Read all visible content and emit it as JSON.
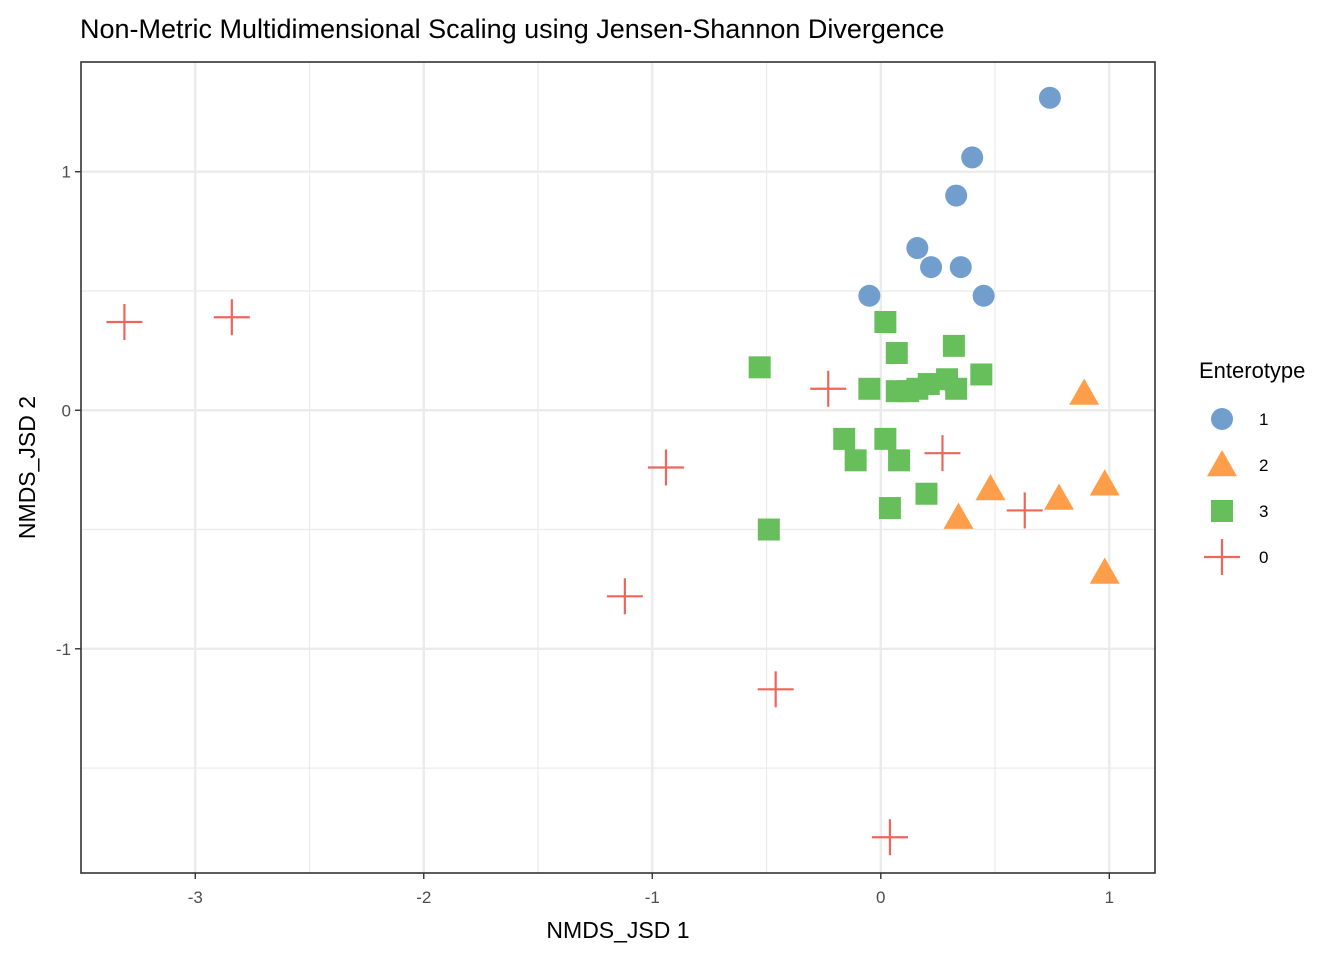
{
  "chart_data": {
    "type": "scatter",
    "title": "Non-Metric Multidimensional Scaling using Jensen-Shannon Divergence",
    "xlabel": "NMDS_JSD 1",
    "ylabel": "NMDS_JSD 2",
    "xlim": [
      -3.5,
      1.2
    ],
    "ylim": [
      -1.94,
      1.46
    ],
    "x_ticks": [
      -3,
      -2,
      -1,
      0,
      1
    ],
    "y_ticks": [
      -1,
      0,
      1
    ],
    "x_tick_labels": [
      "-3",
      "-2",
      "-1",
      "0",
      "1"
    ],
    "y_tick_labels": [
      "-1",
      "0",
      "1"
    ],
    "grid": true,
    "legend": {
      "title": "Enterotype",
      "position": "right"
    },
    "series": [
      {
        "name": "1",
        "shape": "circle",
        "color": "#729ece",
        "points": [
          [
            -0.05,
            0.48
          ],
          [
            0.16,
            0.68
          ],
          [
            0.22,
            0.6
          ],
          [
            0.33,
            0.9
          ],
          [
            0.35,
            0.6
          ],
          [
            0.4,
            1.06
          ],
          [
            0.45,
            0.48
          ],
          [
            0.74,
            1.31
          ]
        ]
      },
      {
        "name": "2",
        "shape": "triangle",
        "color": "#ff9e4a",
        "points": [
          [
            0.34,
            -0.45
          ],
          [
            0.48,
            -0.33
          ],
          [
            0.78,
            -0.37
          ],
          [
            0.89,
            0.07
          ],
          [
            0.98,
            -0.31
          ],
          [
            0.98,
            -0.68
          ]
        ]
      },
      {
        "name": "3",
        "shape": "square",
        "color": "#67bf5c",
        "points": [
          [
            -0.53,
            0.18
          ],
          [
            -0.49,
            -0.5
          ],
          [
            -0.16,
            -0.12
          ],
          [
            -0.11,
            -0.21
          ],
          [
            -0.05,
            0.09
          ],
          [
            0.02,
            0.37
          ],
          [
            0.02,
            -0.12
          ],
          [
            0.04,
            -0.41
          ],
          [
            0.07,
            0.24
          ],
          [
            0.07,
            0.08
          ],
          [
            0.08,
            -0.21
          ],
          [
            0.12,
            0.08
          ],
          [
            0.16,
            0.09
          ],
          [
            0.2,
            -0.35
          ],
          [
            0.21,
            0.11
          ],
          [
            0.29,
            0.13
          ],
          [
            0.32,
            0.27
          ],
          [
            0.33,
            0.09
          ],
          [
            0.44,
            0.15
          ]
        ]
      },
      {
        "name": "0",
        "shape": "cross",
        "color": "#ed665d",
        "points": [
          [
            -3.31,
            0.37
          ],
          [
            -2.84,
            0.39
          ],
          [
            -1.12,
            -0.78
          ],
          [
            -0.94,
            -0.24
          ],
          [
            -0.46,
            -1.17
          ],
          [
            -0.23,
            0.09
          ],
          [
            0.04,
            -1.79
          ],
          [
            0.27,
            -0.18
          ],
          [
            0.63,
            -0.42
          ]
        ]
      }
    ]
  }
}
